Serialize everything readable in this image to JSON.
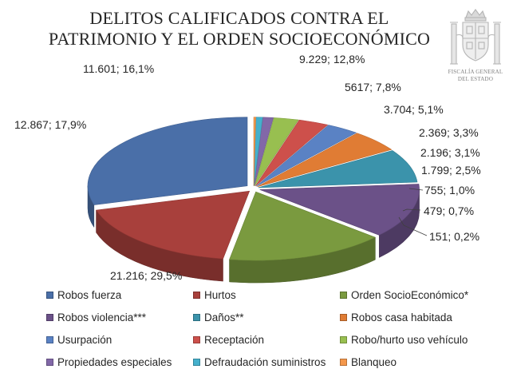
{
  "header": {
    "title_line1": "DELITOS CALIFICADOS CONTRA EL",
    "title_line2": "PATRIMONIO Y EL ORDEN SOCIOECONÓMICO"
  },
  "emblem": {
    "icon": "coat-of-arms-icon",
    "caption_line1": "FISCALÍA GENERAL",
    "caption_line2": "DEL ESTADO"
  },
  "chart_data": {
    "type": "pie",
    "title": "DELITOS CALIFICADOS CONTRA EL PATRIMONIO Y EL ORDEN SOCIOECONÓMICO",
    "style": "3d-exploded",
    "legend_position": "bottom",
    "slices": [
      {
        "name": "Robos fuerza",
        "value": 21216,
        "percent": 29.5,
        "label": "21.216; 29,5%",
        "color": "#4a6fa8"
      },
      {
        "name": "Hurtos",
        "value": 12867,
        "percent": 17.9,
        "label": "12.867; 17,9%",
        "color": "#a8403c"
      },
      {
        "name": "Orden SocioEconómico*",
        "value": 11601,
        "percent": 16.1,
        "label": "11.601; 16,1%",
        "color": "#7a9a3f"
      },
      {
        "name": "Robos violencia***",
        "value": 9229,
        "percent": 12.8,
        "label": "9.229; 12,8%",
        "color": "#6b5188"
      },
      {
        "name": "Daños**",
        "value": 5617,
        "percent": 7.8,
        "label": "5617; 7,8%",
        "color": "#3b93ab"
      },
      {
        "name": "Robos casa habitada",
        "value": 3704,
        "percent": 5.1,
        "label": "3.704; 5,1%",
        "color": "#e07c34"
      },
      {
        "name": "Usurpación",
        "value": 2369,
        "percent": 3.3,
        "label": "2.369; 3,3%",
        "color": "#5a82c4"
      },
      {
        "name": "Receptación",
        "value": 2196,
        "percent": 3.1,
        "label": "2.196; 3,1%",
        "color": "#cd504b"
      },
      {
        "name": "Robo/hurto uso vehículo",
        "value": 1799,
        "percent": 2.5,
        "label": "1.799; 2,5%",
        "color": "#98bf50"
      },
      {
        "name": "Propiedades especiales",
        "value": 755,
        "percent": 1.0,
        "label": "755; 1,0%",
        "color": "#8268a8"
      },
      {
        "name": "Defraudación suministros",
        "value": 479,
        "percent": 0.7,
        "label": "479; 0,7%",
        "color": "#45b0cc"
      },
      {
        "name": "Blanqueo",
        "value": 151,
        "percent": 0.2,
        "label": "151; 0,2%",
        "color": "#f4974b"
      }
    ]
  }
}
